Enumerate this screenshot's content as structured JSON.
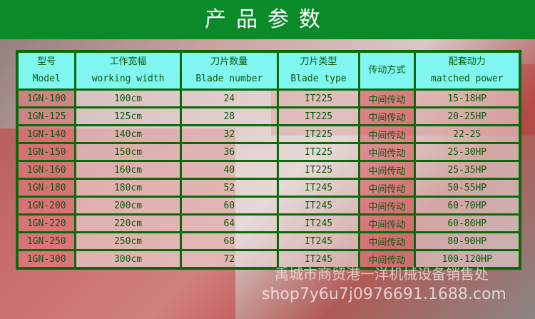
{
  "title": "产品参数",
  "headers": [
    {
      "cn": "型号",
      "en": "Model"
    },
    {
      "cn": "工作宽幅",
      "en": "working width"
    },
    {
      "cn": "刀片数量",
      "en": "Blade number"
    },
    {
      "cn": "刀片类型",
      "en": "Blade type"
    },
    {
      "cn": "传动方式",
      "en": ""
    },
    {
      "cn": "配套动力",
      "en": "matched power"
    }
  ],
  "rows": [
    [
      "1GN-100",
      "100cm",
      "24",
      "IT225",
      "中间传动",
      "15-18HP"
    ],
    [
      "1GN-125",
      "125cm",
      "28",
      "IT225",
      "中间传动",
      "20-25HP"
    ],
    [
      "1GN-140",
      "140cm",
      "32",
      "IT225",
      "中间传动",
      "22-25"
    ],
    [
      "1GN-150",
      "150cm",
      "36",
      "IT225",
      "中间传动",
      "25-30HP"
    ],
    [
      "1GN-160",
      "160cm",
      "40",
      "IT225",
      "中间传动",
      "25-35HP"
    ],
    [
      "1GN-180",
      "180cm",
      "52",
      "IT245",
      "中间传动",
      "50-55HP"
    ],
    [
      "1GN-200",
      "200cm",
      "60",
      "IT245",
      "中间传动",
      "60-70HP"
    ],
    [
      "1GN-220",
      "220cm",
      "64",
      "IT245",
      "中间传动",
      "60-80HP"
    ],
    [
      "1GN-250",
      "250cm",
      "68",
      "IT245",
      "中间传动",
      "80-90HP"
    ],
    [
      "1GN-300",
      "300cm",
      "72",
      "IT245",
      "中间传动",
      "100-120HP"
    ]
  ],
  "watermark": {
    "company": "禹城市商贸港一洋机械设备销售处",
    "url": "shop7y6u7j0976691.1688.com"
  }
}
